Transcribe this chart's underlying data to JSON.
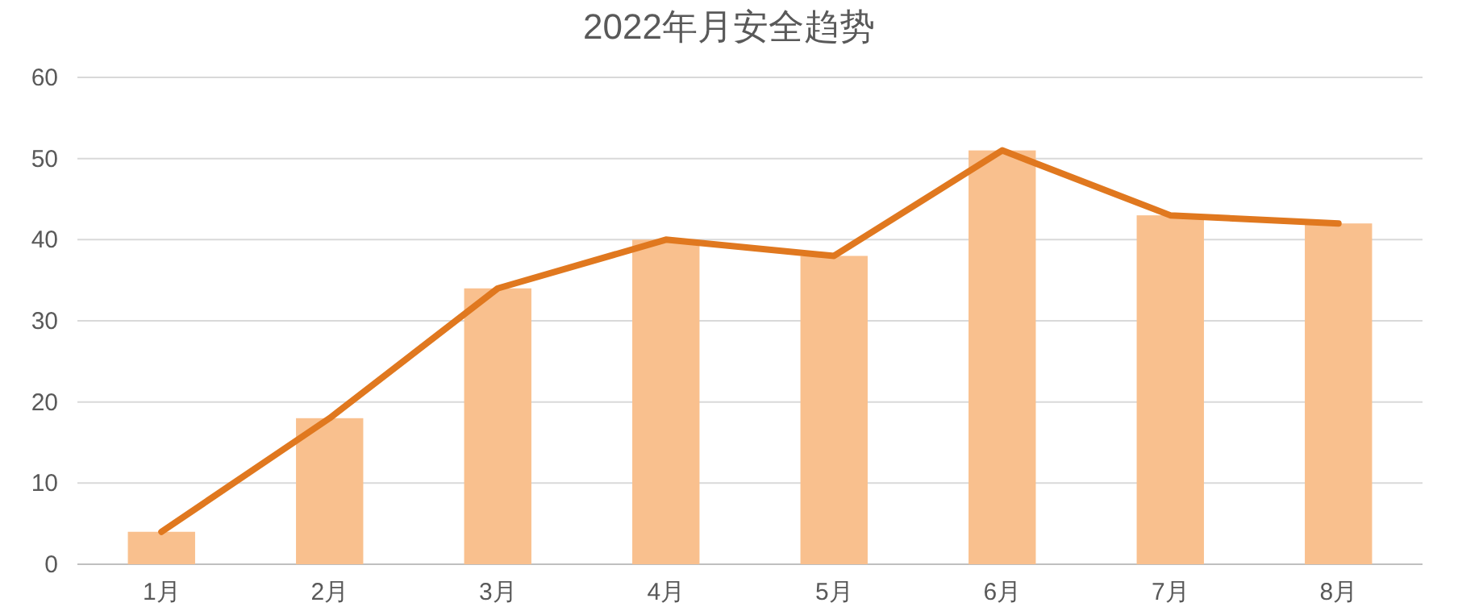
{
  "chart_data": {
    "type": "bar",
    "title": "2022年月安全趋势",
    "categories": [
      "1月",
      "2月",
      "3月",
      "4月",
      "5月",
      "6月",
      "7月",
      "8月"
    ],
    "series": [
      {
        "color": "#f9c08e",
        "values": [
          4,
          18,
          34,
          40,
          38,
          51,
          43,
          42
        ]
      },
      {
        "type": "line",
        "color": "#e0781f",
        "values": [
          4,
          18,
          34,
          40,
          38,
          51,
          43,
          42
        ]
      }
    ],
    "ylim": [
      0,
      60
    ],
    "yticks": [
      0,
      10,
      20,
      30,
      40,
      50,
      60
    ],
    "grid": "y"
  }
}
